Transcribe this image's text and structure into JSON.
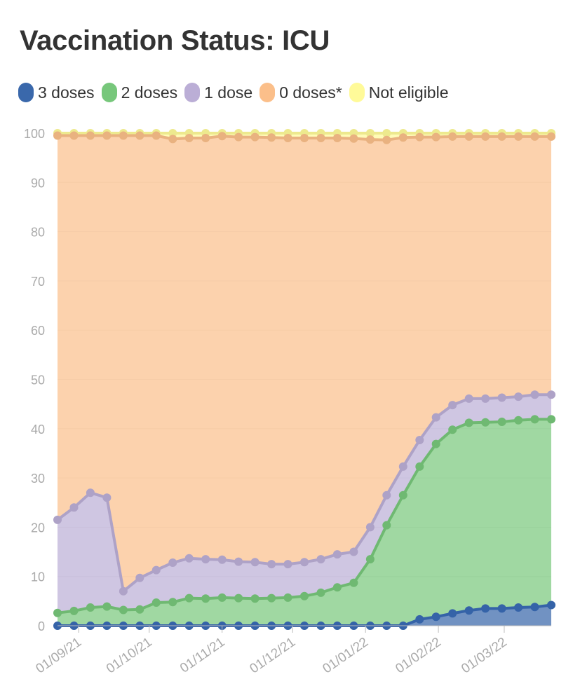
{
  "title": "Vaccination Status: ICU",
  "colors": {
    "three_doses": "#3a68ab",
    "two_doses": "#77c77b",
    "one_dose": "#bbaed6",
    "zero_doses": "#fbbf8a",
    "not_eligible": "#fffa99"
  },
  "chart_data": {
    "type": "area",
    "stacked": true,
    "legend_position": "top-left",
    "grid": true,
    "ylim": [
      0,
      100
    ],
    "yticks": [
      0,
      10,
      20,
      30,
      40,
      50,
      60,
      70,
      80,
      90,
      100
    ],
    "x_start": "2021-08-23",
    "x_step_days": 7,
    "x_tick_labels": [
      "01/09/21",
      "01/10/21",
      "01/11/21",
      "01/12/21",
      "01/01/22",
      "01/02/22",
      "01/03/22"
    ],
    "x_tick_dates": [
      "2021-09-01",
      "2021-10-01",
      "2021-11-01",
      "2021-12-01",
      "2022-01-01",
      "2022-02-01",
      "2022-03-01"
    ],
    "series": [
      {
        "name": "3 doses",
        "key": "three_doses",
        "cumulative": [
          0,
          0,
          0,
          0,
          0,
          0,
          0,
          0,
          0,
          0,
          0,
          0,
          0,
          0,
          0,
          0,
          0,
          0,
          0,
          0,
          0,
          0,
          1.3,
          1.8,
          2.5,
          3.1,
          3.5,
          3.5,
          3.7,
          3.8,
          4.2
        ]
      },
      {
        "name": "2 doses",
        "key": "two_doses",
        "cumulative": [
          2.6,
          3.0,
          3.7,
          3.9,
          3.2,
          3.3,
          4.7,
          4.8,
          5.6,
          5.5,
          5.7,
          5.6,
          5.5,
          5.6,
          5.7,
          6.0,
          6.7,
          7.8,
          8.7,
          13.5,
          20.4,
          26.5,
          32.3,
          36.9,
          39.8,
          41.2,
          41.3,
          41.4,
          41.7,
          41.9,
          41.9
        ]
      },
      {
        "name": "1 dose",
        "key": "one_dose",
        "cumulative": [
          21.5,
          24.0,
          27.0,
          26.0,
          7.0,
          9.7,
          11.3,
          12.8,
          13.7,
          13.5,
          13.4,
          13.0,
          12.9,
          12.5,
          12.5,
          12.9,
          13.5,
          14.5,
          15.0,
          20.0,
          26.5,
          32.3,
          37.7,
          42.3,
          44.8,
          46.1,
          46.1,
          46.3,
          46.5,
          46.9,
          46.9
        ]
      },
      {
        "name": "0 doses*",
        "key": "zero_doses",
        "cumulative": [
          99.5,
          99.5,
          99.5,
          99.5,
          99.5,
          99.5,
          99.5,
          98.8,
          99.0,
          99.0,
          99.4,
          99.2,
          99.2,
          99.1,
          99.0,
          99.0,
          99.0,
          99.0,
          98.9,
          98.7,
          98.6,
          99.1,
          99.2,
          99.2,
          99.3,
          99.3,
          99.3,
          99.3,
          99.3,
          99.3,
          99.3
        ]
      },
      {
        "name": "Not eligible",
        "key": "not_eligible",
        "cumulative": [
          100,
          100,
          100,
          100,
          100,
          100,
          100,
          100,
          100,
          100,
          100,
          100,
          100,
          100,
          100,
          100,
          100,
          100,
          100,
          100,
          100,
          100,
          100,
          100,
          100,
          100,
          100,
          100,
          100,
          100,
          100
        ]
      }
    ]
  }
}
